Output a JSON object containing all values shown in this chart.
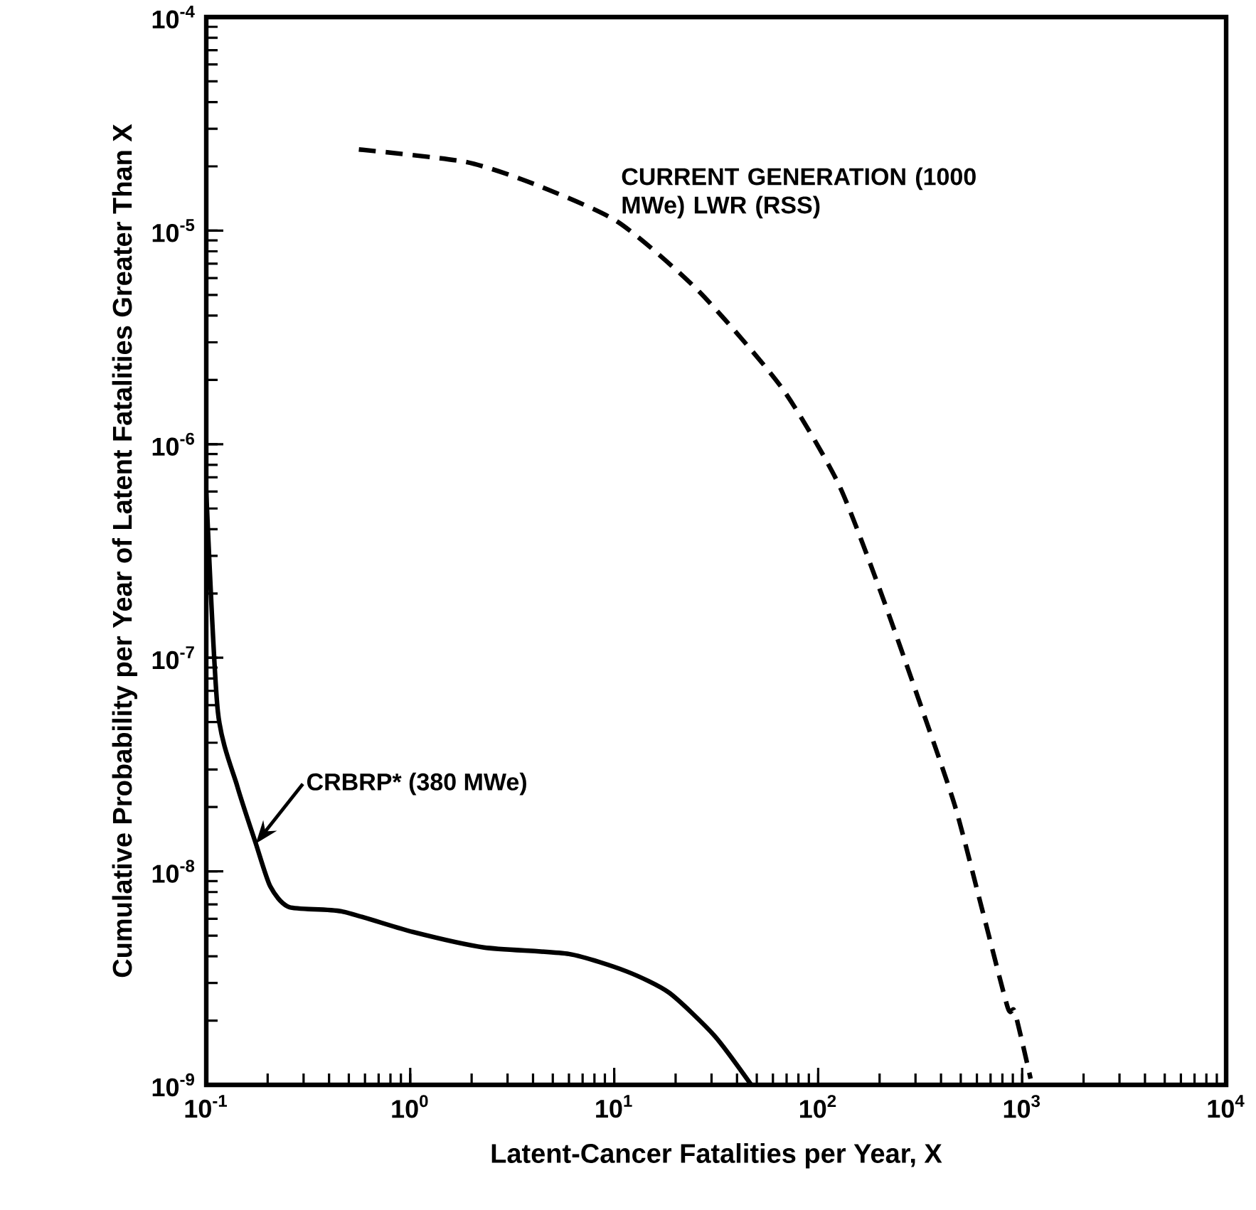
{
  "chart_data": {
    "type": "line",
    "log": "xy",
    "xlabel": "Latent-Cancer Fatalities per Year, X",
    "ylabel": "Cumulative Probability per Year of Latent Fatalities Greater Than X",
    "xlim": [
      0.1,
      10000
    ],
    "ylim": [
      1e-09,
      0.0001
    ],
    "xticks": [
      {
        "value": 0.1,
        "label": "10$^{-1}$"
      },
      {
        "value": 1,
        "label": "10$^{0}$"
      },
      {
        "value": 10,
        "label": "10$^{1}$"
      },
      {
        "value": 100,
        "label": "10$^{2}$"
      },
      {
        "value": 1000,
        "label": "10$^{3}$"
      },
      {
        "value": 10000,
        "label": "10$^{4}$"
      }
    ],
    "yticks": [
      {
        "value": 1e-09,
        "label": "10$^{-9}$"
      },
      {
        "value": 1e-08,
        "label": "10$^{-8}$"
      },
      {
        "value": 1e-07,
        "label": "10$^{-7}$"
      },
      {
        "value": 1e-06,
        "label": "10$^{-6}$"
      },
      {
        "value": 1e-05,
        "label": "10$^{-5}$"
      },
      {
        "value": 0.0001,
        "label": "10$^{-4}$"
      }
    ],
    "grid": false,
    "legend": false,
    "marker": "none",
    "series": [
      {
        "name": "CURRENT GENERATION (1000 MWe) LWR (RSS)",
        "color": "#000000",
        "line_style": "dashed",
        "x": [
          0.56,
          1.86,
          4.0,
          10.4,
          26,
          66,
          125,
          200,
          318,
          470,
          640,
          850,
          920,
          1100
        ],
        "values": [
          2.4e-05,
          2.1e-05,
          1.66e-05,
          1.1e-05,
          5.2e-06,
          1.85e-06,
          6.6e-07,
          2.1e-07,
          6e-08,
          2e-08,
          6.5e-09,
          2.3e-09,
          2.2e-09,
          1.07e-09
        ]
      },
      {
        "name": "CRBRP* (380 MWe)",
        "color": "#000000",
        "line_style": "solid",
        "x": [
          0.1,
          0.114,
          0.142,
          0.175,
          0.206,
          0.255,
          0.46,
          1.03,
          2.3,
          6.0,
          11.5,
          18.6,
          31,
          47
        ],
        "values": [
          6e-07,
          5.6e-08,
          2.5e-08,
          1.35e-08,
          8.5e-09,
          6.8e-09,
          6.5e-09,
          5.2e-09,
          4.4e-09,
          4.1e-09,
          3.4e-09,
          2.7e-09,
          1.7e-09,
          1e-09
        ]
      }
    ]
  }
}
